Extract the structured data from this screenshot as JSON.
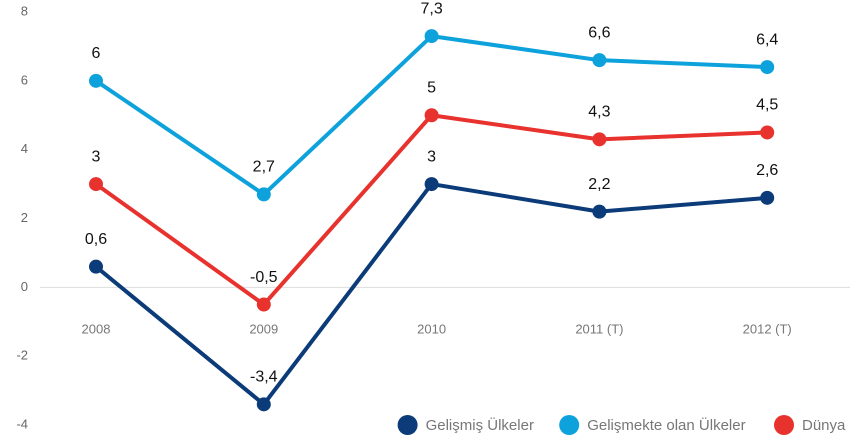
{
  "chart_data": {
    "type": "line",
    "categories": [
      "2008",
      "2009",
      "2010",
      "2011 (T)",
      "2012 (T)"
    ],
    "series": [
      {
        "name": "Gelişmiş Ülkeler",
        "color": "#0b3b78",
        "values": [
          0.6,
          -3.4,
          3,
          2.2,
          2.6
        ],
        "value_labels": [
          "0,6",
          "-3,4",
          "3",
          "2,2",
          "2,6"
        ]
      },
      {
        "name": "Gelişmekte olan Ülkeler",
        "color": "#0ea2dc",
        "values": [
          6,
          2.7,
          7.3,
          6.6,
          6.4
        ],
        "value_labels": [
          "6",
          "2,7",
          "7,3",
          "6,6",
          "6,4"
        ]
      },
      {
        "name": "Dünya",
        "color": "#e8322e",
        "values": [
          3,
          -0.5,
          5,
          4.3,
          4.5
        ],
        "value_labels": [
          "3",
          "-0,5",
          "5",
          "4,3",
          "4,5"
        ]
      }
    ],
    "ylim": [
      -4,
      8
    ],
    "yticks": [
      -4,
      -2,
      0,
      2,
      4,
      6,
      8
    ],
    "legend": "bottom-right"
  }
}
